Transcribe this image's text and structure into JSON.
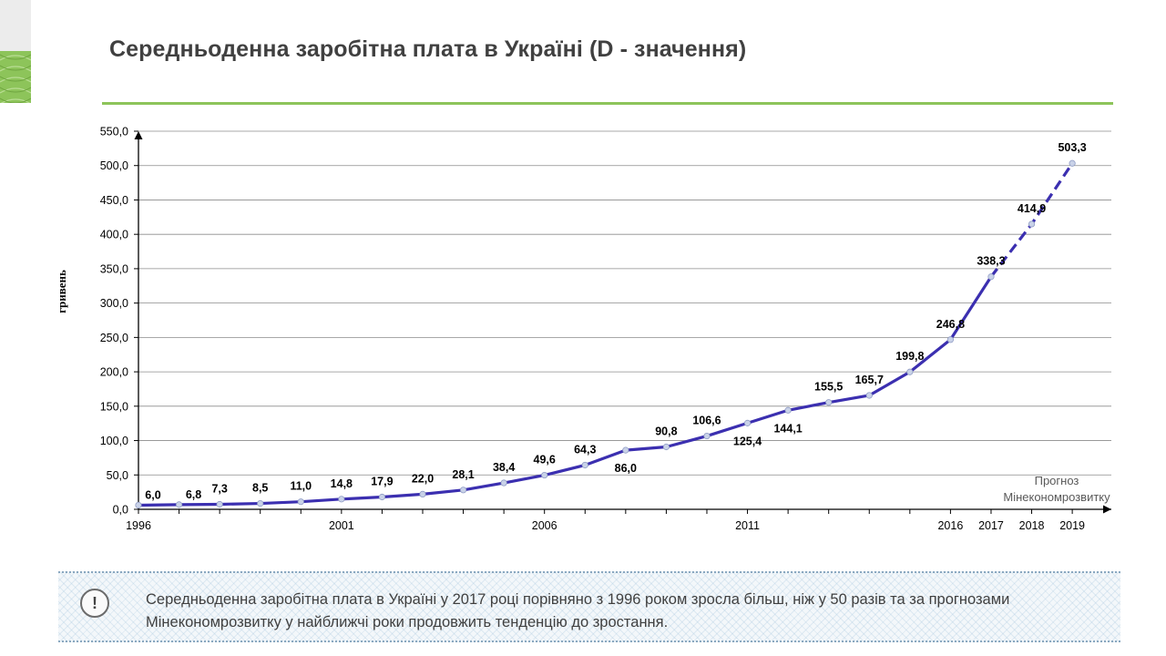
{
  "title": "Середньоденна заробітна плата  в Україні (D - значення)",
  "note": {
    "icon": "exclamation-icon",
    "symbol": "!",
    "text": "Середньоденна заробітна плата  в Україні у 2017 році порівняно з 1996 роком зросла більш, ніж у 50 разів та за прогнозами Мінекономрозвитку у найближчі роки продовжить тенденцію до зростання."
  },
  "colors": {
    "line": "#3b2fb0",
    "marker": "#c9d2e8",
    "accent": "#8dc45a",
    "grid": "#8c8c8c"
  },
  "chart_data": {
    "type": "line",
    "title": "Середньоденна заробітна плата  в Україні (D - значення)",
    "ylabel": "гривень",
    "xlabel": "",
    "ylim": [
      0,
      550
    ],
    "yticks": [
      "0,0",
      "50,0",
      "100,0",
      "150,0",
      "200,0",
      "250,0",
      "300,0",
      "350,0",
      "400,0",
      "450,0",
      "500,0",
      "550,0"
    ],
    "x": [
      1996,
      1997,
      1998,
      1999,
      2000,
      2001,
      2002,
      2003,
      2004,
      2005,
      2006,
      2007,
      2008,
      2009,
      2010,
      2011,
      2012,
      2013,
      2014,
      2015,
      2016,
      2017,
      2018,
      2019
    ],
    "xtick_labels": [
      "1996",
      "2001",
      "2006",
      "2011",
      "2016",
      "2017",
      "2018",
      "2019"
    ],
    "values": [
      6.0,
      6.8,
      7.3,
      8.5,
      11.0,
      14.8,
      17.9,
      22.0,
      28.1,
      38.4,
      49.6,
      64.3,
      86.0,
      90.8,
      106.6,
      125.4,
      144.1,
      155.5,
      165.7,
      199.8,
      246.8,
      338.3,
      414.9,
      503.3
    ],
    "data_labels": [
      "6,0",
      "6,8",
      "7,3",
      "8,5",
      "11,0",
      "14,8",
      "17,9",
      "22,0",
      "28,1",
      "38,4",
      "49,6",
      "64,3",
      "86,0",
      "90,8",
      "106,6",
      "125,4",
      "144,1",
      "155,5",
      "165,7",
      "199,8",
      "246,8",
      "338,3",
      "414,9",
      "503,3"
    ],
    "forecast_from": 2017,
    "forecast_label": [
      "Прогноз",
      "Мінекономрозвитку"
    ],
    "grid": true,
    "legend": "none"
  }
}
